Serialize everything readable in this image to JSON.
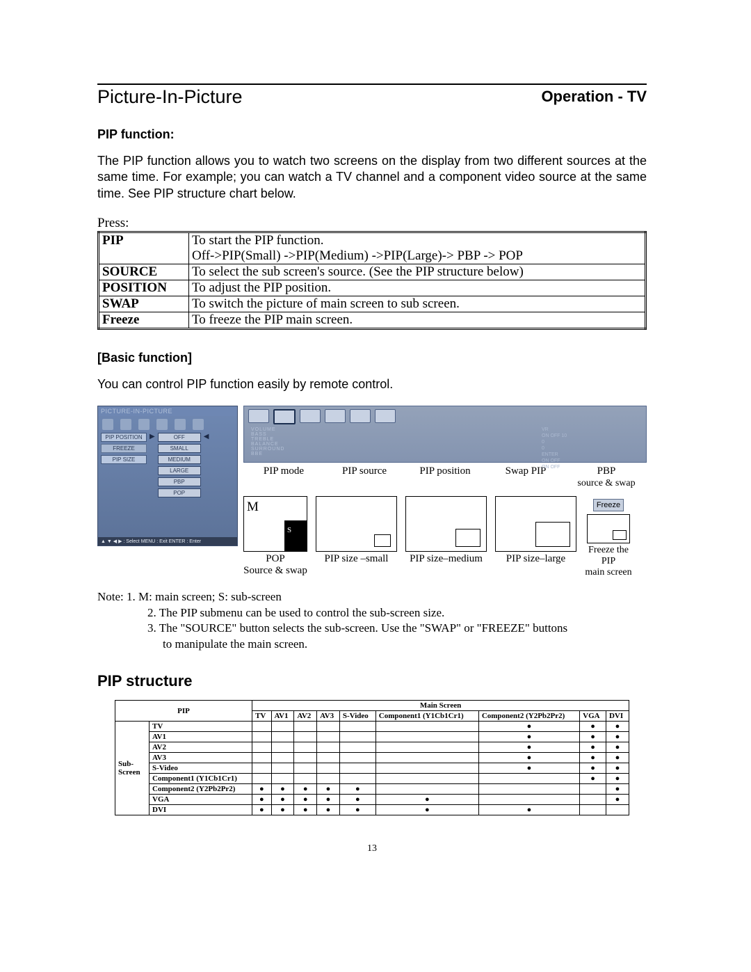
{
  "header": {
    "operation": "Operation - TV"
  },
  "title": "Picture-In-Picture",
  "pip_function_label": "PIP function:",
  "pip_function_text": "The PIP function allows you to watch two screens on the display from two different sources at the same time.  For example; you can watch a TV channel and a component video source at the same time.  See PIP structure chart below.",
  "press_label": "Press:",
  "func_table": [
    {
      "key": "PIP",
      "desc_line1": "To start the PIP function.",
      "desc_line2": "Off->PIP(Small) ->PIP(Medium) ->PIP(Large)-> PBP -> POP"
    },
    {
      "key": "SOURCE",
      "desc_line1": "To select the sub screen's source. (See the PIP structure below)"
    },
    {
      "key": "POSITION",
      "desc_line1": "To adjust the PIP position."
    },
    {
      "key": "SWAP",
      "desc_line1": "To switch the picture of main screen to sub screen."
    },
    {
      "key": "Freeze",
      "desc_line1": "To freeze the PIP main screen."
    }
  ],
  "basic_function_label": "[Basic function]",
  "basic_function_text": "You can control PIP function easily by remote control.",
  "remote": {
    "header": "PICTURE-IN-PICTURE",
    "left_buttons": [
      "PIP POSITION",
      "FREEZE",
      "PIP SIZE"
    ],
    "options": [
      "OFF",
      "SMALL",
      "MEDIUM",
      "LARGE",
      "PBP",
      "POP"
    ],
    "footer": "▲ ▼ ◀ ▶ : Select   MENU : Exit   ENTER : Enter"
  },
  "osd": {
    "left_lines": [
      "VOLUME",
      "BASS",
      "TREBLE",
      "BALANCE",
      "SURROUND",
      "BBE"
    ],
    "right_lines": [
      "VR",
      "ON    OFF    10",
      "0",
      "0",
      "ENTER",
      "ON    OFF",
      "ON    OFF"
    ]
  },
  "mode_labels": [
    "PIP mode",
    "PIP source",
    "PIP position",
    "Swap PIP",
    "PBP"
  ],
  "pbp_sub": "source & swap",
  "diagrams": {
    "pop": {
      "title": "POP",
      "sub": "Source & swap",
      "m": "M",
      "s": "S"
    },
    "small": "PIP size –small",
    "medium": "PIP size–medium",
    "large": "PIP size–large",
    "freeze_btn": "Freeze",
    "freeze_line1": "Freeze the PIP",
    "freeze_line2": "main screen"
  },
  "notes": {
    "n1": "Note: 1. M: main screen; S: sub-screen",
    "n2": "2. The PIP submenu can be used to control the sub-screen size.",
    "n3a": "3. The \"SOURCE\" button selects the sub-screen.  Use the  \"SWAP\" or \"FREEZE\" buttons",
    "n3b": "to manipulate the main screen."
  },
  "pip_structure_heading": "PIP structure",
  "matrix": {
    "corner": "PIP",
    "main_header": "Main Screen",
    "sub_header": "Sub-Screen",
    "cols": [
      "TV",
      "AV1",
      "AV2",
      "AV3",
      "S-Video",
      "Component1 (Y1Cb1Cr1)",
      "Component2 (Y2Pb2Pr2)",
      "VGA",
      "DVI"
    ],
    "rows": [
      {
        "label": "TV",
        "dots": [
          "",
          "",
          "",
          "",
          "",
          "",
          "●",
          "●",
          "●"
        ]
      },
      {
        "label": "AV1",
        "dots": [
          "",
          "",
          "",
          "",
          "",
          "",
          "●",
          "●",
          "●"
        ]
      },
      {
        "label": "AV2",
        "dots": [
          "",
          "",
          "",
          "",
          "",
          "",
          "●",
          "●",
          "●"
        ]
      },
      {
        "label": "AV3",
        "dots": [
          "",
          "",
          "",
          "",
          "",
          "",
          "●",
          "●",
          "●"
        ]
      },
      {
        "label": "S-Video",
        "dots": [
          "",
          "",
          "",
          "",
          "",
          "",
          "●",
          "●",
          "●"
        ]
      },
      {
        "label": "Component1 (Y1Cb1Cr1)",
        "dots": [
          "",
          "",
          "",
          "",
          "",
          "",
          "",
          "●",
          "●"
        ]
      },
      {
        "label": "Component2 (Y2Pb2Pr2)",
        "dots": [
          "●",
          "●",
          "●",
          "●",
          "●",
          "",
          "",
          "",
          "●"
        ]
      },
      {
        "label": "VGA",
        "dots": [
          "●",
          "●",
          "●",
          "●",
          "●",
          "●",
          "",
          "",
          "●"
        ]
      },
      {
        "label": "DVI",
        "dots": [
          "●",
          "●",
          "●",
          "●",
          "●",
          "●",
          "●",
          "",
          ""
        ]
      }
    ]
  },
  "page_number": "13",
  "colors": {
    "panel_bg_top": "#6f88b2",
    "panel_bg_bot": "#5c7298",
    "btn_bg": "#a9b9d2",
    "opt_bg": "#c4cedf"
  }
}
